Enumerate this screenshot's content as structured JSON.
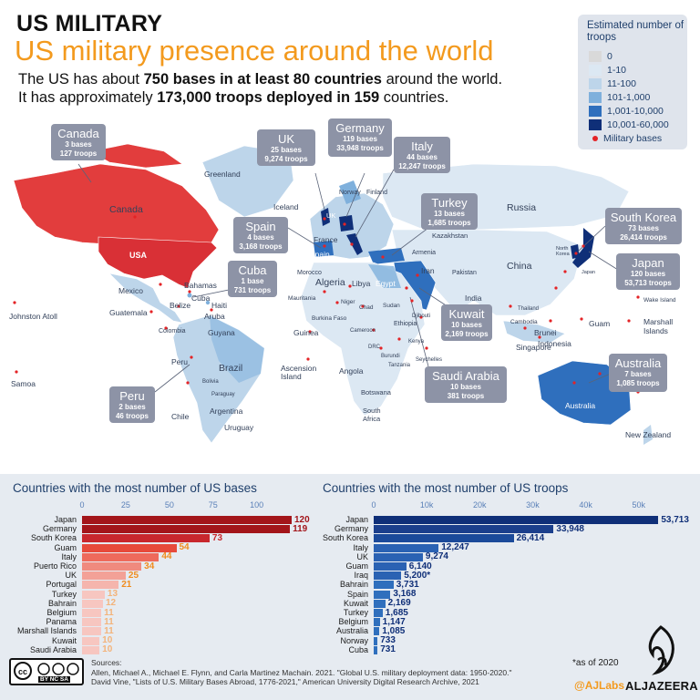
{
  "header": {
    "kicker": "US MILITARY",
    "title": "US military presence around the world",
    "line1_pre": "The US has about ",
    "line1_bold": "750 bases in at least 80 countries",
    "line1_post": " around the world.",
    "line2_pre": "It has approximately ",
    "line2_bold": "173,000 troops deployed in 159",
    "line2_post": " countries."
  },
  "legend": {
    "title": "Estimated number of troops",
    "items": [
      {
        "label": "0",
        "color": "#d9d9d9"
      },
      {
        "label": "1-10",
        "color": "#dce8f3"
      },
      {
        "label": "11-100",
        "color": "#bdd5ea"
      },
      {
        "label": "101-1,000",
        "color": "#7fb0dc"
      },
      {
        "label": "1,001-10,000",
        "color": "#2f6fbd"
      },
      {
        "label": "10,001-60,000",
        "color": "#0f2f78"
      }
    ],
    "bases_label": "Military bases",
    "bases_color": "#e42326"
  },
  "map": {
    "callouts": [
      {
        "id": "canada",
        "name": "Canada",
        "bases": "3 bases",
        "troops": "127 troops"
      },
      {
        "id": "uk",
        "name": "UK",
        "bases": "25 bases",
        "troops": "9,274 troops"
      },
      {
        "id": "germany",
        "name": "Germany",
        "bases": "119 bases",
        "troops": "33,948 troops"
      },
      {
        "id": "italy",
        "name": "Italy",
        "bases": "44 bases",
        "troops": "12,247 troops"
      },
      {
        "id": "turkey",
        "name": "Turkey",
        "bases": "13 bases",
        "troops": "1,685 troops"
      },
      {
        "id": "south-korea",
        "name": "South Korea",
        "bases": "73 bases",
        "troops": "26,414 troops"
      },
      {
        "id": "spain",
        "name": "Spain",
        "bases": "4 bases",
        "troops": "3,168 troops"
      },
      {
        "id": "cuba",
        "name": "Cuba",
        "bases": "1 base",
        "troops": "731 troops"
      },
      {
        "id": "japan",
        "name": "Japan",
        "bases": "120 bases",
        "troops": "53,713 troops"
      },
      {
        "id": "kuwait",
        "name": "Kuwait",
        "bases": "10 bases",
        "troops": "2,169 troops"
      },
      {
        "id": "saudi-arabia",
        "name": "Saudi Arabia",
        "bases": "10 bases",
        "troops": "381 troops"
      },
      {
        "id": "peru",
        "name": "Peru",
        "bases": "2 bases",
        "troops": "46 troops"
      },
      {
        "id": "australia",
        "name": "Australia",
        "bases": "7 bases",
        "troops": "1,085 troops"
      }
    ],
    "places": [
      "Greenland",
      "Canada",
      "USA",
      "Iceland",
      "Norway",
      "Finland",
      "Russia",
      "UK",
      "France",
      "Spain",
      "Kazakhstan",
      "Armenia",
      "Mexico",
      "Bahamas",
      "Cuba",
      "Haiti",
      "Belize",
      "Guatemala",
      "Aruba",
      "Colombia",
      "Guyana",
      "Johnston Atoll",
      "Morocco",
      "Algeria",
      "Libya",
      "Egypt",
      "Iran",
      "Pakistan",
      "China",
      "India",
      "Mauritania",
      "Niger",
      "Chad",
      "Sudan",
      "Burkina Faso",
      "Guinea",
      "Ethiopia",
      "Djibouti",
      "Cameroon",
      "DRC",
      "Burundi",
      "Tanzania",
      "Seychelles",
      "Kenya",
      "Angola",
      "Botswana",
      "South Africa",
      "Ascension Island",
      "Brazil",
      "Peru",
      "Bolivia",
      "Paraguay",
      "Chile",
      "Argentina",
      "Uruguay",
      "Samoa",
      "Cambodia",
      "Singapore",
      "Brunei",
      "Indonesia",
      "Guam",
      "Wake Island",
      "Marshall Islands",
      "Australia",
      "New Zealand",
      "North Korea",
      "Japan",
      "Thailand"
    ]
  },
  "chart_data": [
    {
      "type": "bar",
      "title": "Countries with the most number of US bases",
      "categories": [
        "Japan",
        "Germany",
        "South Korea",
        "Guam",
        "Italy",
        "Puerto Rico",
        "UK",
        "Portugal",
        "Turkey",
        "Bahrain",
        "Belgium",
        "Panama",
        "Marshall Islands",
        "Kuwait",
        "Saudi Arabia"
      ],
      "values": [
        120,
        119,
        73,
        54,
        44,
        34,
        25,
        21,
        13,
        12,
        11,
        11,
        11,
        10,
        10
      ],
      "value_labels": [
        "120",
        "119",
        "73",
        "54",
        "44",
        "34",
        "25",
        "21",
        "13",
        "12",
        "11",
        "11",
        "11",
        "10",
        "10"
      ],
      "xticks": [
        "0",
        "25",
        "50",
        "75",
        "100"
      ],
      "xlim": [
        0,
        120
      ],
      "colors": [
        "#a3151a",
        "#a3151a",
        "#c8272d",
        "#e74a3b",
        "#ee6a5c",
        "#f08a7e",
        "#f3a197",
        "#f5b5ad",
        "#f7c6c0",
        "#f7c6c0",
        "#f7c6c0",
        "#f7c6c0",
        "#f7c6c0",
        "#f7c6c0",
        "#f7c6c0"
      ],
      "value_colors": [
        "#a3151a",
        "#a3151a",
        "#c8272d",
        "#f08c1e",
        "#f08c1e",
        "#f08c1e",
        "#f08c1e",
        "#f08c1e",
        "#f3b37a",
        "#f3b37a",
        "#f3b37a",
        "#f3b37a",
        "#f3b37a",
        "#f3b37a",
        "#f3b37a"
      ]
    },
    {
      "type": "bar",
      "title": "Countries with the most number of US troops",
      "categories": [
        "Japan",
        "Germany",
        "South Korea",
        "Italy",
        "UK",
        "Guam",
        "Iraq",
        "Bahrain",
        "Spain",
        "Kuwait",
        "Turkey",
        "Belgium",
        "Australia",
        "Norway",
        "Cuba"
      ],
      "values": [
        53713,
        33948,
        26414,
        12247,
        9274,
        6140,
        5200,
        3731,
        3168,
        2169,
        1685,
        1147,
        1085,
        733,
        731
      ],
      "value_labels": [
        "53,713",
        "33,948",
        "26,414",
        "12,247",
        "9,274",
        "6,140",
        "5,200*",
        "3,731",
        "3,168",
        "2,169",
        "1,685",
        "1,147",
        "1,085",
        "733",
        "731"
      ],
      "xticks": [
        "0",
        "10k",
        "20k",
        "30k",
        "40k",
        "50k"
      ],
      "xlim": [
        0,
        54000
      ],
      "colors": [
        "#0f2f78",
        "#1b3f8c",
        "#1b4a9a",
        "#2a62b3",
        "#2a62b3",
        "#2a62b3",
        "#2a62b3",
        "#2f6fbd",
        "#2f6fbd",
        "#2f6fbd",
        "#2f6fbd",
        "#2f6fbd",
        "#2f6fbd",
        "#2f6fbd",
        "#2f6fbd"
      ],
      "value_color": "#0f2f78"
    }
  ],
  "footer": {
    "sources_label": "Sources:",
    "source1": "Allen, Michael A., Michael E. Flynn, and Carla Martinez Machain. 2021. \"Global U.S. military deployment data: 1950-2020.\"",
    "source2": "David Vine, \"Lists of U.S. Military Bases Abroad, 1776-2021,\" American University Digital Research Archive, 2021",
    "footnote": "*as of 2020",
    "handle": "@AJLabs",
    "brand": "ALJAZEERA",
    "license": "BY NC SA"
  }
}
